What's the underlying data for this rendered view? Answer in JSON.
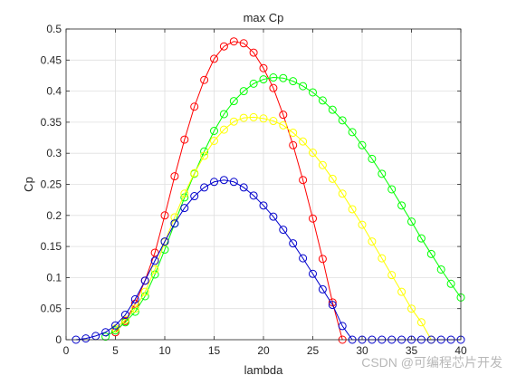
{
  "chart_data": {
    "type": "line",
    "title": "max Cp",
    "xlabel": "lambda",
    "ylabel": "Cp",
    "xlim": [
      0,
      40
    ],
    "ylim": [
      0,
      0.5
    ],
    "xticks": [
      0,
      5,
      10,
      15,
      20,
      25,
      30,
      35,
      40
    ],
    "xtick_labels": [
      "0",
      "5",
      "10",
      "15",
      "20",
      "25",
      "30",
      "35",
      "40"
    ],
    "yticks": [
      0,
      0.05,
      0.1,
      0.15,
      0.2,
      0.25,
      0.3,
      0.35,
      0.4,
      0.45,
      0.5
    ],
    "ytick_labels": [
      "0",
      "0.05",
      "0.1",
      "0.15",
      "0.2",
      "0.25",
      "0.3",
      "0.35",
      "0.4",
      "0.45",
      "0.5"
    ],
    "grid": true,
    "marker": "circle",
    "series": [
      {
        "color": "#ff0000",
        "x": [
          5,
          6,
          7,
          8,
          9,
          10,
          11,
          12,
          13,
          14,
          15,
          16,
          17,
          18,
          19,
          20,
          21,
          22,
          23,
          24,
          25,
          26,
          27,
          28
        ],
        "y": [
          0.012,
          0.03,
          0.058,
          0.095,
          0.14,
          0.2,
          0.263,
          0.322,
          0.375,
          0.418,
          0.452,
          0.472,
          0.48,
          0.477,
          0.462,
          0.437,
          0.405,
          0.362,
          0.313,
          0.257,
          0.195,
          0.13,
          0.06,
          0.0
        ]
      },
      {
        "color": "#00ff00",
        "x": [
          4,
          5,
          6,
          7,
          8,
          9,
          10,
          11,
          12,
          13,
          14,
          15,
          16,
          17,
          18,
          19,
          20,
          21,
          22,
          23,
          24,
          25,
          26,
          27,
          28,
          29,
          30,
          31,
          32,
          33,
          34,
          35,
          36,
          37,
          38,
          39,
          40
        ],
        "y": [
          0.005,
          0.015,
          0.028,
          0.045,
          0.07,
          0.105,
          0.145,
          0.187,
          0.229,
          0.267,
          0.303,
          0.336,
          0.363,
          0.384,
          0.4,
          0.412,
          0.419,
          0.422,
          0.421,
          0.416,
          0.408,
          0.398,
          0.385,
          0.37,
          0.353,
          0.334,
          0.313,
          0.291,
          0.267,
          0.242,
          0.216,
          0.19,
          0.163,
          0.138,
          0.113,
          0.09,
          0.068
        ]
      },
      {
        "color": "#ffff00",
        "x": [
          5,
          6,
          7,
          8,
          9,
          10,
          11,
          12,
          13,
          14,
          15,
          16,
          17,
          18,
          19,
          20,
          21,
          22,
          23,
          24,
          25,
          26,
          27,
          28,
          29,
          30,
          31,
          32,
          33,
          34,
          35,
          36,
          37
        ],
        "y": [
          0.018,
          0.032,
          0.05,
          0.077,
          0.113,
          0.157,
          0.197,
          0.235,
          0.268,
          0.296,
          0.32,
          0.338,
          0.351,
          0.357,
          0.358,
          0.356,
          0.352,
          0.345,
          0.333,
          0.319,
          0.301,
          0.281,
          0.259,
          0.235,
          0.21,
          0.185,
          0.158,
          0.131,
          0.104,
          0.077,
          0.05,
          0.028,
          0.0
        ]
      },
      {
        "color": "#0000cc",
        "x": [
          1,
          2,
          3,
          4,
          5,
          6,
          7,
          8,
          9,
          10,
          11,
          12,
          13,
          14,
          15,
          16,
          17,
          18,
          19,
          20,
          21,
          22,
          23,
          24,
          25,
          26,
          27,
          28,
          29,
          30,
          31,
          32,
          33,
          34,
          35,
          36,
          37,
          38,
          39,
          40
        ],
        "y": [
          0.0,
          0.002,
          0.006,
          0.012,
          0.023,
          0.04,
          0.065,
          0.095,
          0.127,
          0.158,
          0.187,
          0.212,
          0.231,
          0.245,
          0.254,
          0.257,
          0.254,
          0.245,
          0.232,
          0.216,
          0.198,
          0.177,
          0.155,
          0.131,
          0.106,
          0.081,
          0.056,
          0.022,
          0.0,
          0.0,
          0.0,
          0.0,
          0.0,
          0.0,
          0.0,
          0.0,
          0.0,
          0.0,
          0.0,
          0.0
        ]
      }
    ]
  },
  "watermark": "CSDN @可编程芯片开发"
}
